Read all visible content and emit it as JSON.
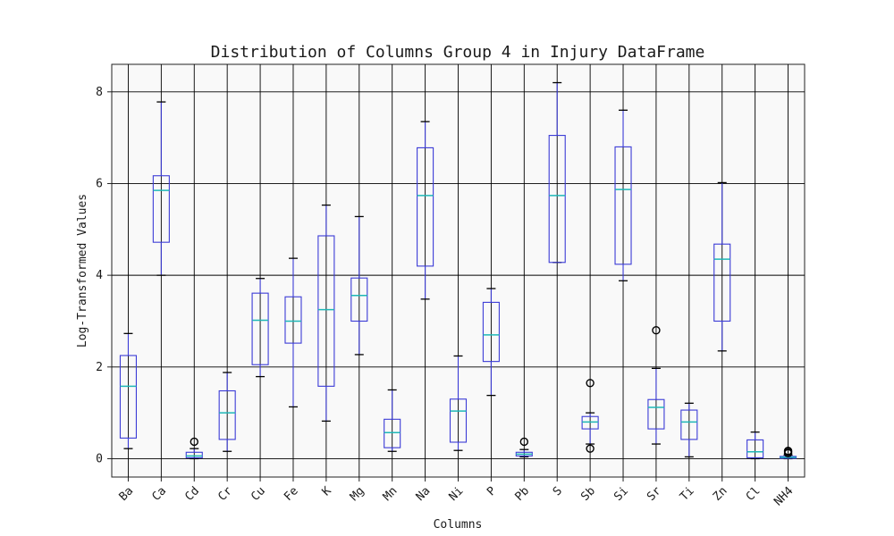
{
  "chart_data": {
    "type": "box",
    "title": "Distribution of Columns Group 4 in Injury DataFrame",
    "xlabel": "Columns",
    "ylabel": "Log-Transformed Values",
    "ylim": [
      -0.4,
      8.6
    ],
    "yticks": [
      0,
      2,
      4,
      6,
      8
    ],
    "grid": true,
    "categories": [
      "Ba",
      "Ca",
      "Cd",
      "Cr",
      "Cu",
      "Fe",
      "K",
      "Mg",
      "Mn",
      "Na",
      "Ni",
      "P",
      "Pb",
      "S",
      "Sb",
      "Si",
      "Sr",
      "Ti",
      "Zn",
      "Cl",
      "NH4"
    ],
    "boxes": [
      {
        "name": "Ba",
        "whislo": 0.22,
        "q1": 0.45,
        "med": 1.58,
        "q3": 2.25,
        "whishi": 2.73,
        "fliers": []
      },
      {
        "name": "Ca",
        "whislo": 4.0,
        "q1": 4.72,
        "med": 5.85,
        "q3": 6.17,
        "whishi": 7.78,
        "fliers": []
      },
      {
        "name": "Cd",
        "whislo": 0.0,
        "q1": 0.02,
        "med": 0.06,
        "q3": 0.14,
        "whishi": 0.22,
        "fliers": [
          0.37
        ]
      },
      {
        "name": "Cr",
        "whislo": 0.16,
        "q1": 0.42,
        "med": 1.0,
        "q3": 1.48,
        "whishi": 1.88,
        "fliers": []
      },
      {
        "name": "Cu",
        "whislo": 1.79,
        "q1": 2.05,
        "med": 3.02,
        "q3": 3.61,
        "whishi": 3.93,
        "fliers": []
      },
      {
        "name": "Fe",
        "whislo": 1.13,
        "q1": 2.52,
        "med": 3.0,
        "q3": 3.53,
        "whishi": 4.37,
        "fliers": []
      },
      {
        "name": "K",
        "whislo": 0.82,
        "q1": 1.58,
        "med": 3.25,
        "q3": 4.86,
        "whishi": 5.53,
        "fliers": []
      },
      {
        "name": "Mg",
        "whislo": 2.27,
        "q1": 3.0,
        "med": 3.56,
        "q3": 3.94,
        "whishi": 5.28,
        "fliers": []
      },
      {
        "name": "Mn",
        "whislo": 0.16,
        "q1": 0.24,
        "med": 0.57,
        "q3": 0.86,
        "whishi": 1.5,
        "fliers": []
      },
      {
        "name": "Na",
        "whislo": 3.48,
        "q1": 4.2,
        "med": 5.74,
        "q3": 6.78,
        "whishi": 7.35,
        "fliers": []
      },
      {
        "name": "Ni",
        "whislo": 0.18,
        "q1": 0.36,
        "med": 1.04,
        "q3": 1.3,
        "whishi": 2.24,
        "fliers": []
      },
      {
        "name": "P",
        "whislo": 1.38,
        "q1": 2.12,
        "med": 2.7,
        "q3": 3.41,
        "whishi": 3.71,
        "fliers": []
      },
      {
        "name": "Pb",
        "whislo": 0.04,
        "q1": 0.06,
        "med": 0.1,
        "q3": 0.14,
        "whishi": 0.2,
        "fliers": [
          0.37
        ]
      },
      {
        "name": "S",
        "whislo": 4.28,
        "q1": 4.28,
        "med": 5.74,
        "q3": 7.05,
        "whishi": 8.2,
        "fliers": []
      },
      {
        "name": "Sb",
        "whislo": 0.32,
        "q1": 0.65,
        "med": 0.8,
        "q3": 0.92,
        "whishi": 1.0,
        "fliers": [
          1.65,
          0.22
        ]
      },
      {
        "name": "Si",
        "whislo": 3.88,
        "q1": 4.24,
        "med": 5.87,
        "q3": 6.8,
        "whishi": 7.6,
        "fliers": []
      },
      {
        "name": "Sr",
        "whislo": 0.32,
        "q1": 0.65,
        "med": 1.12,
        "q3": 1.29,
        "whishi": 1.97,
        "fliers": [
          2.8
        ]
      },
      {
        "name": "Ti",
        "whislo": 0.04,
        "q1": 0.42,
        "med": 0.8,
        "q3": 1.06,
        "whishi": 1.21,
        "fliers": []
      },
      {
        "name": "Zn",
        "whislo": 2.35,
        "q1": 3.0,
        "med": 4.35,
        "q3": 4.68,
        "whishi": 6.02,
        "fliers": []
      },
      {
        "name": "Cl",
        "whislo": 0.0,
        "q1": 0.02,
        "med": 0.15,
        "q3": 0.41,
        "whishi": 0.58,
        "fliers": []
      },
      {
        "name": "NH4",
        "whislo": 0.0,
        "q1": 0.01,
        "med": 0.03,
        "q3": 0.05,
        "whishi": 0.08,
        "fliers": [
          0.12,
          0.15,
          0.17
        ]
      }
    ]
  }
}
